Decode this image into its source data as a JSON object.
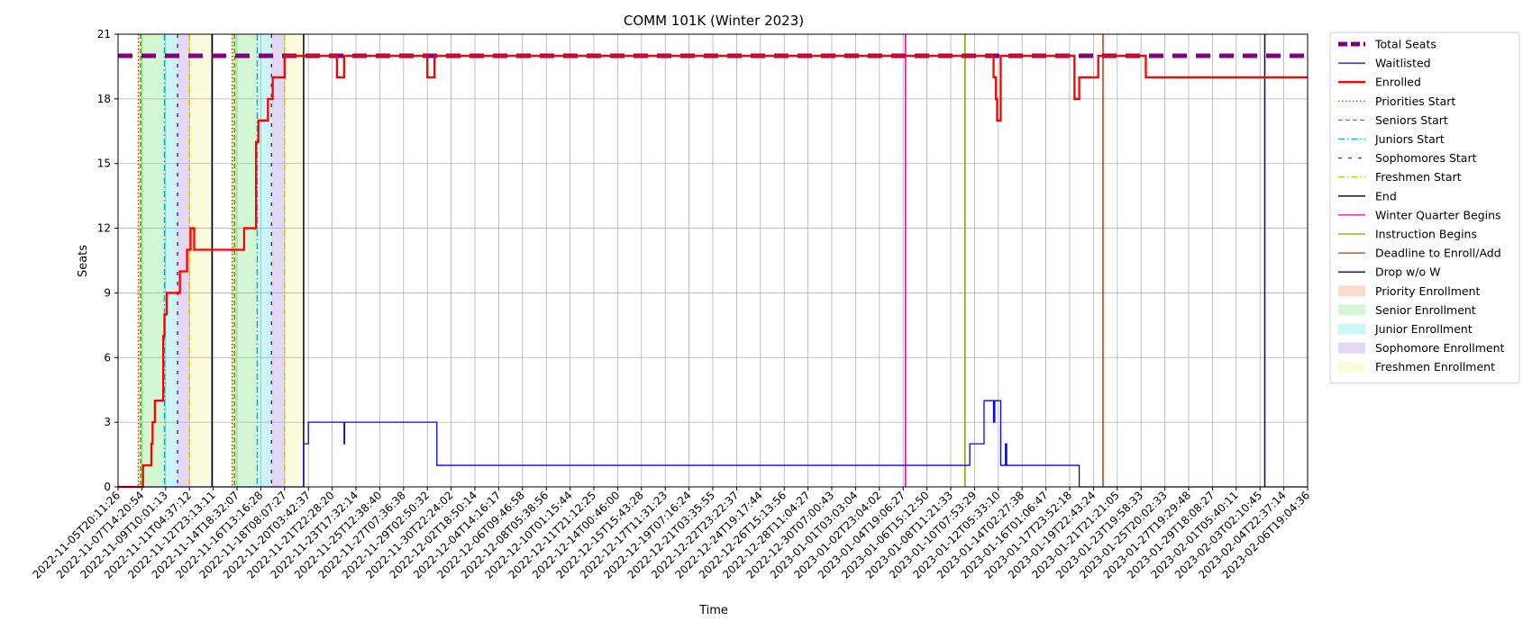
{
  "chart_data": {
    "type": "line",
    "title": "COMM 101K (Winter 2023)",
    "xlabel": "Time",
    "ylabel": "Seats",
    "ylim": [
      0,
      21
    ],
    "yticks": [
      0,
      3,
      6,
      9,
      12,
      15,
      18,
      21
    ],
    "grid": true,
    "legend_position": "outside-right",
    "x_tick_labels": [
      "2022-11-05T20:11:26",
      "2022-11-07T14:20:54",
      "2022-11-09T10:01:13",
      "2022-11-11T04:37:12",
      "2022-11-12T23:13:11",
      "2022-11-14T18:32:07",
      "2022-11-16T13:16:28",
      "2022-11-18T08:07:27",
      "2022-11-20T03:42:37",
      "2022-11-21T22:28:20",
      "2022-11-23T17:32:14",
      "2022-11-25T12:38:40",
      "2022-11-27T07:36:38",
      "2022-11-29T02:50:32",
      "2022-11-30T22:24:02",
      "2022-12-02T18:50:14",
      "2022-12-04T14:16:17",
      "2022-12-06T09:46:58",
      "2022-12-08T05:38:56",
      "2022-12-10T01:15:44",
      "2022-12-11T21:12:25",
      "2022-12-14T00:46:00",
      "2022-12-15T15:43:28",
      "2022-12-17T11:31:23",
      "2022-12-19T07:16:24",
      "2022-12-21T03:35:55",
      "2022-12-22T23:22:37",
      "2022-12-24T19:17:44",
      "2022-12-26T15:13:56",
      "2022-12-28T11:04:27",
      "2022-12-30T07:00:43",
      "2023-01-01T03:03:04",
      "2023-01-02T23:04:02",
      "2023-01-04T19:06:27",
      "2023-01-06T15:12:50",
      "2023-01-08T11:21:33",
      "2023-01-10T07:53:29",
      "2023-01-12T05:33:10",
      "2023-01-14T02:27:38",
      "2023-01-16T01:06:47",
      "2023-01-17T23:52:18",
      "2023-01-19T22:43:24",
      "2023-01-21T21:21:05",
      "2023-01-23T19:58:33",
      "2023-01-25T20:02:33",
      "2023-01-27T19:29:48",
      "2023-01-29T18:08:27",
      "2023-02-01T05:40:11",
      "2023-02-03T02:10:45",
      "2023-02-04T22:37:14",
      "2023-02-06T19:04:36"
    ],
    "series": [
      {
        "name": "Total Seats",
        "color": "#800080",
        "style": "dashed-thick",
        "points": [
          [
            0,
            20
          ],
          [
            50,
            20
          ]
        ]
      },
      {
        "name": "Waitlisted",
        "color": "#0000ff",
        "style": "solid",
        "points": [
          [
            0,
            0
          ],
          [
            7.8,
            0
          ],
          [
            7.8,
            2
          ],
          [
            8.0,
            2
          ],
          [
            8.0,
            3
          ],
          [
            9.5,
            3
          ],
          [
            9.5,
            2
          ],
          [
            9.52,
            2
          ],
          [
            9.52,
            3
          ],
          [
            13.4,
            3
          ],
          [
            13.4,
            1
          ],
          [
            35.8,
            1
          ],
          [
            35.8,
            2
          ],
          [
            36.4,
            2
          ],
          [
            36.4,
            4
          ],
          [
            36.8,
            4
          ],
          [
            36.8,
            3
          ],
          [
            36.85,
            3
          ],
          [
            36.85,
            4
          ],
          [
            37.1,
            4
          ],
          [
            37.1,
            1
          ],
          [
            37.3,
            1
          ],
          [
            37.3,
            2
          ],
          [
            37.35,
            2
          ],
          [
            37.35,
            1
          ],
          [
            40.4,
            1
          ],
          [
            40.4,
            0
          ],
          [
            50,
            0
          ]
        ]
      },
      {
        "name": "Enrolled",
        "color": "#ff0000",
        "style": "solid-thick",
        "points": [
          [
            0,
            0
          ],
          [
            1.05,
            0
          ],
          [
            1.05,
            1
          ],
          [
            1.4,
            1
          ],
          [
            1.4,
            2
          ],
          [
            1.45,
            2
          ],
          [
            1.45,
            3
          ],
          [
            1.55,
            3
          ],
          [
            1.55,
            4
          ],
          [
            1.9,
            4
          ],
          [
            1.9,
            7
          ],
          [
            1.95,
            7
          ],
          [
            1.95,
            8
          ],
          [
            2.05,
            8
          ],
          [
            2.05,
            9
          ],
          [
            2.6,
            9
          ],
          [
            2.6,
            10
          ],
          [
            2.9,
            10
          ],
          [
            2.9,
            11
          ],
          [
            3.05,
            11
          ],
          [
            3.05,
            12
          ],
          [
            3.2,
            12
          ],
          [
            3.2,
            11
          ],
          [
            5.3,
            11
          ],
          [
            5.3,
            12
          ],
          [
            5.8,
            12
          ],
          [
            5.8,
            16
          ],
          [
            5.9,
            16
          ],
          [
            5.9,
            17
          ],
          [
            6.3,
            17
          ],
          [
            6.3,
            18
          ],
          [
            6.5,
            18
          ],
          [
            6.5,
            19
          ],
          [
            7.0,
            19
          ],
          [
            7.0,
            20
          ],
          [
            9.2,
            20
          ],
          [
            9.2,
            19
          ],
          [
            9.5,
            19
          ],
          [
            9.5,
            20
          ],
          [
            13.0,
            20
          ],
          [
            13.0,
            19
          ],
          [
            13.3,
            19
          ],
          [
            13.3,
            20
          ],
          [
            36.8,
            20
          ],
          [
            36.8,
            19
          ],
          [
            36.9,
            19
          ],
          [
            36.9,
            18
          ],
          [
            36.95,
            18
          ],
          [
            36.95,
            17
          ],
          [
            37.1,
            17
          ],
          [
            37.1,
            20
          ],
          [
            40.2,
            20
          ],
          [
            40.2,
            18
          ],
          [
            40.4,
            18
          ],
          [
            40.4,
            19
          ],
          [
            41.2,
            19
          ],
          [
            41.2,
            20
          ],
          [
            43.2,
            20
          ],
          [
            43.2,
            19
          ],
          [
            50,
            19
          ]
        ]
      }
    ],
    "phases": [
      {
        "name": "Priority Enrollment",
        "color": "#f4a582",
        "x_ranges": [
          [
            0.85,
            0.95
          ],
          [
            4.8,
            4.9
          ]
        ]
      },
      {
        "name": "Senior Enrollment",
        "color": "#90e890",
        "x_ranges": [
          [
            0.95,
            1.95
          ],
          [
            4.9,
            5.85
          ]
        ]
      },
      {
        "name": "Junior Enrollment",
        "color": "#80e5e5",
        "x_ranges": [
          [
            1.95,
            2.5
          ],
          [
            5.85,
            6.45
          ]
        ]
      },
      {
        "name": "Sophomore Enrollment",
        "color": "#b89be0",
        "x_ranges": [
          [
            2.5,
            3.0
          ],
          [
            6.45,
            7.0
          ]
        ]
      },
      {
        "name": "Freshmen Enrollment",
        "color": "#f2f2a8",
        "x_ranges": [
          [
            3.0,
            3.95
          ],
          [
            7.0,
            7.8
          ]
        ]
      }
    ],
    "markers": [
      {
        "name": "Priorities Start",
        "color": "#ff3300",
        "style": "dotted",
        "x": [
          0.85,
          4.8
        ]
      },
      {
        "name": "Seniors Start",
        "color": "#22bb00",
        "style": "dashed",
        "x": [
          0.95,
          4.9
        ]
      },
      {
        "name": "Juniors Start",
        "color": "#00bbbb",
        "style": "dashdot",
        "x": [
          1.95,
          5.85
        ]
      },
      {
        "name": "Sophomores Start",
        "color": "#5522cc",
        "style": "loose-dashed",
        "x": [
          2.5,
          6.45
        ]
      },
      {
        "name": "Freshmen Start",
        "color": "#d4c800",
        "style": "dashdot",
        "x": [
          3.0,
          7.0
        ]
      },
      {
        "name": "End",
        "color": "#000000",
        "style": "solid",
        "x": [
          3.95,
          7.8
        ]
      },
      {
        "name": "Winter Quarter Begins",
        "color": "#dd00bb",
        "style": "solid",
        "x": [
          33.1
        ]
      },
      {
        "name": "Instruction Begins",
        "color": "#77aa00",
        "style": "solid",
        "x": [
          35.6
        ]
      },
      {
        "name": "Deadline to Enroll/Add",
        "color": "#cc3300",
        "style": "solid",
        "x": [
          41.4
        ]
      },
      {
        "name": "Drop w/o W",
        "color": "#000088",
        "style": "solid",
        "x": [
          48.2
        ]
      }
    ]
  }
}
